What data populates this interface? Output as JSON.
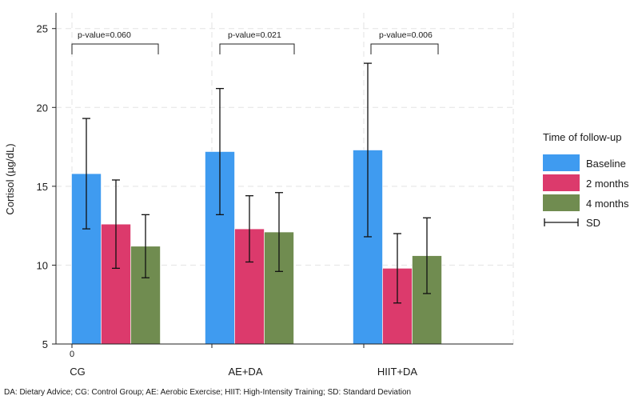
{
  "chart_data": {
    "type": "bar",
    "ylabel": "Cortisol (µg/dL)",
    "ylim": [
      5,
      26
    ],
    "yticks": [
      5,
      10,
      15,
      20,
      25
    ],
    "grid": true,
    "categories": [
      "CG",
      "AE+DA",
      "HIIT+DA"
    ],
    "first_category_tick_label": "0",
    "series": [
      {
        "name": "Baseline",
        "color": "#3f9bf0",
        "values": [
          15.8,
          17.2,
          17.3
        ],
        "sd": [
          3.5,
          4.0,
          5.5
        ]
      },
      {
        "name": "2 months",
        "color": "#dc3a6c",
        "values": [
          12.6,
          12.3,
          9.8
        ],
        "sd": [
          2.8,
          2.1,
          2.2
        ]
      },
      {
        "name": "4 months",
        "color": "#708c50",
        "values": [
          11.2,
          12.1,
          10.6
        ],
        "sd": [
          2.0,
          2.5,
          2.4
        ]
      }
    ],
    "annotations": [
      {
        "category": "CG",
        "text": "p-value=0.060"
      },
      {
        "category": "AE+DA",
        "text": "p-value=0.021"
      },
      {
        "category": "HIIT+DA",
        "text": "p-value=0.006"
      }
    ],
    "legend": {
      "title": "Time of follow-up",
      "placement": "right",
      "entries": [
        "Baseline",
        "2 months",
        "4 months",
        "SD"
      ]
    },
    "footnote": "DA: Dietary Advice; CG: Control Group; AE: Aerobic Exercise; HIIT: High-Intensity Training; SD: Standard Deviation"
  }
}
